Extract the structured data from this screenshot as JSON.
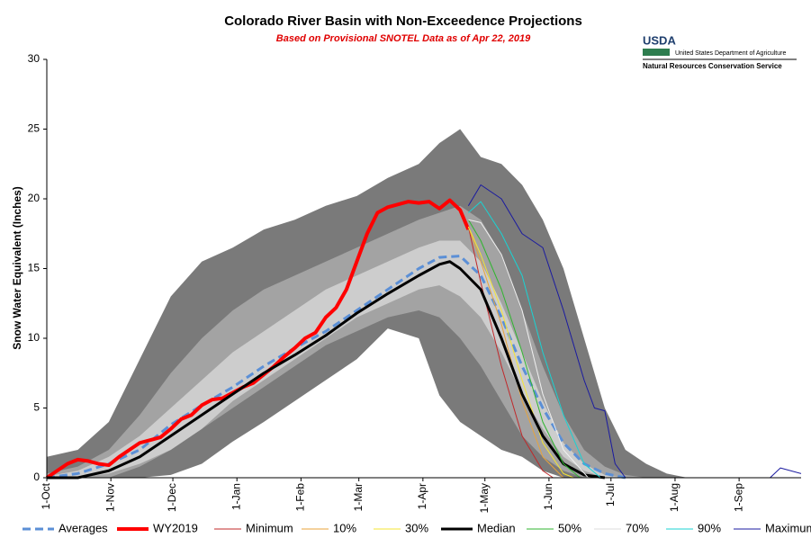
{
  "chart_data": {
    "type": "line",
    "title": "Colorado River Basin with Non-Exceedence Projections",
    "subtitle": "Based on Provisional SNOTEL Data as of Apr 22, 2019",
    "y_label": "Snow Water Equivalent (Inches)",
    "logo": {
      "mark": "USDA",
      "line1": "United States Department of Agriculture",
      "line2": "Natural Resources Conservation Service"
    },
    "xlim": [
      0,
      365
    ],
    "ylim": [
      0,
      30
    ],
    "xticks": [
      {
        "value": 0,
        "label": "1-Oct"
      },
      {
        "value": 31,
        "label": "1-Nov"
      },
      {
        "value": 61,
        "label": "1-Dec"
      },
      {
        "value": 92,
        "label": "1-Jan"
      },
      {
        "value": 123,
        "label": "1-Feb"
      },
      {
        "value": 151,
        "label": "1-Mar"
      },
      {
        "value": 182,
        "label": "1-Apr"
      },
      {
        "value": 212,
        "label": "1-May"
      },
      {
        "value": 243,
        "label": "1-Jun"
      },
      {
        "value": 273,
        "label": "1-Jul"
      },
      {
        "value": 304,
        "label": "1-Aug"
      },
      {
        "value": 335,
        "label": "1-Sep"
      }
    ],
    "yticks": [
      0,
      5,
      10,
      15,
      20,
      25,
      30
    ],
    "bands": [
      {
        "color": "#7a7a7a",
        "x": [
          0,
          15,
          30,
          45,
          60,
          75,
          90,
          105,
          120,
          135,
          150,
          165,
          180,
          190,
          200,
          210,
          220,
          230,
          240,
          250,
          260,
          270,
          280,
          290,
          300,
          310
        ],
        "upper": [
          1.5,
          2,
          4,
          8.5,
          13,
          15.5,
          16.5,
          17.8,
          18.5,
          19.5,
          20.2,
          21.5,
          22.5,
          24,
          25,
          23,
          22.5,
          21,
          18.5,
          15,
          10,
          5,
          2,
          1,
          0.3,
          0
        ],
        "lower": [
          0,
          0,
          0,
          0,
          0.2,
          1,
          2.6,
          4,
          5.5,
          7,
          8.5,
          10.7,
          10,
          5.9,
          4,
          3,
          2,
          1.5,
          0.5,
          0,
          0,
          0,
          0,
          0,
          0,
          0
        ]
      },
      {
        "color": "#a3a3a3",
        "x": [
          0,
          15,
          30,
          45,
          60,
          75,
          90,
          105,
          120,
          135,
          150,
          165,
          180,
          190,
          200,
          210,
          220,
          230,
          240,
          250,
          260,
          270,
          280,
          290
        ],
        "upper": [
          0.3,
          0.8,
          2,
          4.5,
          7.5,
          10,
          12,
          13.5,
          14.5,
          15.5,
          16.5,
          17.5,
          18.5,
          19,
          19.5,
          18.5,
          16,
          12,
          8,
          4.5,
          2,
          0.8,
          0.2,
          0
        ],
        "lower": [
          0,
          0,
          0,
          0.8,
          2,
          3.5,
          5,
          6.5,
          8,
          9.5,
          10.5,
          11.5,
          12,
          11.5,
          10,
          8,
          5.5,
          3,
          1.5,
          0.5,
          0,
          0,
          0,
          0
        ]
      },
      {
        "color": "#cdcdcd",
        "x": [
          0,
          15,
          30,
          45,
          60,
          75,
          90,
          105,
          120,
          135,
          150,
          165,
          180,
          190,
          200,
          210,
          220,
          230,
          240,
          250,
          260,
          270,
          280
        ],
        "upper": [
          0.1,
          0.5,
          1.5,
          3,
          5,
          7,
          9,
          10.5,
          12,
          13.5,
          14.5,
          15.5,
          16.5,
          17,
          17,
          15.5,
          12.5,
          9,
          5.5,
          2.5,
          1,
          0.2,
          0
        ],
        "lower": [
          0,
          0,
          0.3,
          1,
          2,
          3.5,
          5.5,
          7,
          8.5,
          10,
          11.5,
          12.5,
          13.5,
          13.8,
          13,
          11.5,
          9,
          6,
          3.5,
          1.5,
          0.5,
          0,
          0
        ]
      }
    ],
    "series": [
      {
        "name": "Averages",
        "color": "#5b8fd6",
        "width": 3,
        "style": "dashed",
        "x": [
          0,
          15,
          30,
          45,
          60,
          75,
          90,
          105,
          120,
          135,
          150,
          165,
          180,
          190,
          200,
          210,
          220,
          230,
          240,
          250,
          260,
          270,
          280
        ],
        "values": [
          0,
          0.3,
          1,
          2,
          3.8,
          5.2,
          6.5,
          8,
          9.3,
          10.5,
          12,
          13.5,
          15,
          15.8,
          15.9,
          14.5,
          11.5,
          8,
          5,
          2.5,
          1,
          0.3,
          0
        ]
      },
      {
        "name": "WY2019",
        "color": "#ff0000",
        "width": 4,
        "style": "solid",
        "x": [
          0,
          5,
          10,
          15,
          20,
          25,
          30,
          35,
          40,
          45,
          50,
          55,
          60,
          65,
          70,
          75,
          80,
          85,
          90,
          95,
          100,
          105,
          110,
          115,
          120,
          125,
          130,
          135,
          140,
          145,
          150,
          155,
          160,
          165,
          170,
          175,
          180,
          185,
          190,
          195,
          200,
          204
        ],
        "values": [
          0,
          0.5,
          1,
          1.3,
          1.2,
          1,
          0.9,
          1.5,
          2,
          2.5,
          2.7,
          2.9,
          3.5,
          4.2,
          4.5,
          5.2,
          5.6,
          5.7,
          6.1,
          6.5,
          6.8,
          7.4,
          8,
          8.7,
          9.3,
          10,
          10.4,
          11.5,
          12.2,
          13.5,
          15.5,
          17.5,
          19,
          19.4,
          19.6,
          19.8,
          19.7,
          19.8,
          19.3,
          19.9,
          19.2,
          17.8
        ]
      },
      {
        "name": "Minimum",
        "color": "#c0282a",
        "width": 1,
        "style": "solid",
        "x": [
          204,
          210,
          220,
          230,
          240,
          245
        ],
        "values": [
          18,
          14,
          8,
          3,
          0.5,
          0
        ]
      },
      {
        "name": "10%",
        "color": "#e8a33a",
        "width": 1,
        "style": "solid",
        "x": [
          204,
          210,
          220,
          230,
          240,
          250
        ],
        "values": [
          18,
          15.5,
          11,
          5.5,
          1.5,
          0
        ]
      },
      {
        "name": "30%",
        "color": "#f5e533",
        "width": 1,
        "style": "solid",
        "x": [
          204,
          210,
          220,
          230,
          240,
          250,
          255
        ],
        "values": [
          18,
          16,
          12,
          7,
          2.5,
          0.3,
          0
        ]
      },
      {
        "name": "Median",
        "color": "#000000",
        "width": 3,
        "style": "solid",
        "x": [
          0,
          15,
          30,
          45,
          60,
          75,
          90,
          105,
          120,
          135,
          150,
          165,
          180,
          190,
          195,
          200,
          210,
          220,
          230,
          240,
          250,
          260,
          270
        ],
        "values": [
          0,
          0,
          0.5,
          1.5,
          3,
          4.5,
          6,
          7.5,
          8.8,
          10.2,
          11.8,
          13.2,
          14.5,
          15.3,
          15.5,
          15,
          13.5,
          10,
          6,
          3,
          1,
          0.2,
          0
        ]
      },
      {
        "name": "50%",
        "color": "#2fb52f",
        "width": 1,
        "style": "solid",
        "x": [
          204,
          210,
          220,
          230,
          240,
          250,
          258
        ],
        "values": [
          18.5,
          17,
          13.5,
          9,
          4,
          1,
          0
        ]
      },
      {
        "name": "70%",
        "color": "#f0f0f0",
        "width": 1,
        "style": "solid",
        "x": [
          204,
          210,
          220,
          230,
          240,
          250,
          262
        ],
        "values": [
          18.5,
          18.3,
          16,
          12,
          6,
          2,
          0
        ]
      },
      {
        "name": "90%",
        "color": "#1ad3d3",
        "width": 1,
        "style": "solid",
        "x": [
          204,
          210,
          220,
          230,
          240,
          250,
          260,
          268
        ],
        "values": [
          19,
          19.8,
          17.5,
          14.5,
          9,
          4.5,
          1,
          0
        ]
      },
      {
        "name": "Maximum",
        "color": "#1a1aa0",
        "width": 1,
        "style": "solid",
        "x": [
          204,
          210,
          220,
          230,
          240,
          250,
          260,
          265,
          270,
          275,
          280,
          300,
          350,
          355,
          365
        ],
        "values": [
          19.5,
          21,
          20,
          17.5,
          16.5,
          12,
          7,
          5,
          4.8,
          1,
          0,
          0,
          0,
          0.7,
          0.3
        ]
      }
    ]
  }
}
